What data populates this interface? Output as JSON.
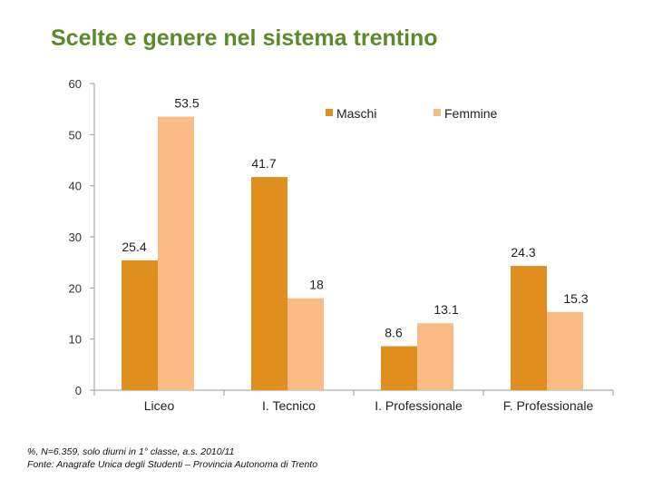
{
  "title": "Scelte e genere nel sistema trentino",
  "footnote": {
    "line1": "%, N=6.359, solo diurni in 1° classe, a.s. 2010/11",
    "line2": "Fonte: Anagrafe Unica degli Studenti – Provincia Autonoma di Trento"
  },
  "colors": {
    "maschi": "#E08E1E",
    "femmine": "#FBBB85"
  },
  "chart_data": {
    "type": "bar",
    "categories": [
      "Liceo",
      "I. Tecnico",
      "I. Professionale",
      "F. Professionale"
    ],
    "series": [
      {
        "name": "Maschi",
        "values": [
          25.4,
          41.7,
          8.6,
          24.3
        ]
      },
      {
        "name": "Femmine",
        "values": [
          53.5,
          18,
          13.1,
          15.3
        ]
      }
    ],
    "data_labels": [
      [
        "25.4",
        "41.7",
        "8.6",
        "24.3"
      ],
      [
        "53.5",
        "18",
        "13.1",
        "15.3"
      ]
    ],
    "yticks": [
      "0",
      "10",
      "20",
      "30",
      "40",
      "50",
      "60"
    ],
    "ylim": [
      0,
      60
    ],
    "legend": "top-right",
    "grid": false
  }
}
